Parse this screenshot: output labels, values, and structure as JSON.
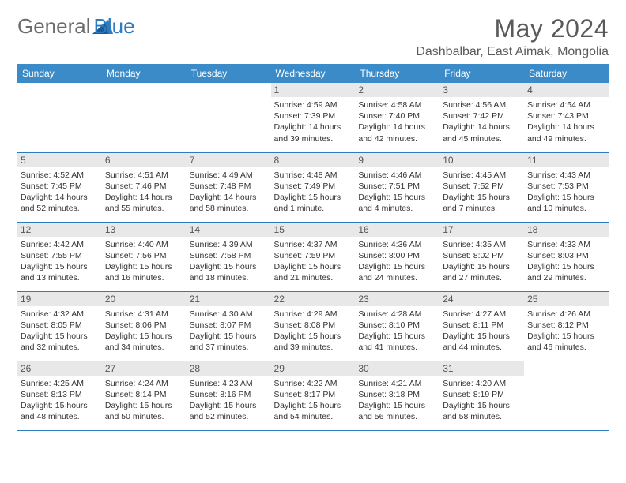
{
  "brand": {
    "part1": "General",
    "part2": "Blue"
  },
  "title": "May 2024",
  "location": "Dashbalbar, East Aimak, Mongolia",
  "colors": {
    "header_bg": "#3b8bc9",
    "header_text": "#ffffff",
    "border": "#2f7bbf",
    "daynum_bg": "#e8e8e8",
    "text": "#333333",
    "title_text": "#5a5a5a",
    "logo_gray": "#6b6b6b",
    "logo_blue": "#2f7bbf"
  },
  "day_headers": [
    "Sunday",
    "Monday",
    "Tuesday",
    "Wednesday",
    "Thursday",
    "Friday",
    "Saturday"
  ],
  "weeks": [
    [
      null,
      null,
      null,
      {
        "n": "1",
        "sunrise": "4:59 AM",
        "sunset": "7:39 PM",
        "daylight": "14 hours and 39 minutes."
      },
      {
        "n": "2",
        "sunrise": "4:58 AM",
        "sunset": "7:40 PM",
        "daylight": "14 hours and 42 minutes."
      },
      {
        "n": "3",
        "sunrise": "4:56 AM",
        "sunset": "7:42 PM",
        "daylight": "14 hours and 45 minutes."
      },
      {
        "n": "4",
        "sunrise": "4:54 AM",
        "sunset": "7:43 PM",
        "daylight": "14 hours and 49 minutes."
      }
    ],
    [
      {
        "n": "5",
        "sunrise": "4:52 AM",
        "sunset": "7:45 PM",
        "daylight": "14 hours and 52 minutes."
      },
      {
        "n": "6",
        "sunrise": "4:51 AM",
        "sunset": "7:46 PM",
        "daylight": "14 hours and 55 minutes."
      },
      {
        "n": "7",
        "sunrise": "4:49 AM",
        "sunset": "7:48 PM",
        "daylight": "14 hours and 58 minutes."
      },
      {
        "n": "8",
        "sunrise": "4:48 AM",
        "sunset": "7:49 PM",
        "daylight": "15 hours and 1 minute."
      },
      {
        "n": "9",
        "sunrise": "4:46 AM",
        "sunset": "7:51 PM",
        "daylight": "15 hours and 4 minutes."
      },
      {
        "n": "10",
        "sunrise": "4:45 AM",
        "sunset": "7:52 PM",
        "daylight": "15 hours and 7 minutes."
      },
      {
        "n": "11",
        "sunrise": "4:43 AM",
        "sunset": "7:53 PM",
        "daylight": "15 hours and 10 minutes."
      }
    ],
    [
      {
        "n": "12",
        "sunrise": "4:42 AM",
        "sunset": "7:55 PM",
        "daylight": "15 hours and 13 minutes."
      },
      {
        "n": "13",
        "sunrise": "4:40 AM",
        "sunset": "7:56 PM",
        "daylight": "15 hours and 16 minutes."
      },
      {
        "n": "14",
        "sunrise": "4:39 AM",
        "sunset": "7:58 PM",
        "daylight": "15 hours and 18 minutes."
      },
      {
        "n": "15",
        "sunrise": "4:37 AM",
        "sunset": "7:59 PM",
        "daylight": "15 hours and 21 minutes."
      },
      {
        "n": "16",
        "sunrise": "4:36 AM",
        "sunset": "8:00 PM",
        "daylight": "15 hours and 24 minutes."
      },
      {
        "n": "17",
        "sunrise": "4:35 AM",
        "sunset": "8:02 PM",
        "daylight": "15 hours and 27 minutes."
      },
      {
        "n": "18",
        "sunrise": "4:33 AM",
        "sunset": "8:03 PM",
        "daylight": "15 hours and 29 minutes."
      }
    ],
    [
      {
        "n": "19",
        "sunrise": "4:32 AM",
        "sunset": "8:05 PM",
        "daylight": "15 hours and 32 minutes."
      },
      {
        "n": "20",
        "sunrise": "4:31 AM",
        "sunset": "8:06 PM",
        "daylight": "15 hours and 34 minutes."
      },
      {
        "n": "21",
        "sunrise": "4:30 AM",
        "sunset": "8:07 PM",
        "daylight": "15 hours and 37 minutes."
      },
      {
        "n": "22",
        "sunrise": "4:29 AM",
        "sunset": "8:08 PM",
        "daylight": "15 hours and 39 minutes."
      },
      {
        "n": "23",
        "sunrise": "4:28 AM",
        "sunset": "8:10 PM",
        "daylight": "15 hours and 41 minutes."
      },
      {
        "n": "24",
        "sunrise": "4:27 AM",
        "sunset": "8:11 PM",
        "daylight": "15 hours and 44 minutes."
      },
      {
        "n": "25",
        "sunrise": "4:26 AM",
        "sunset": "8:12 PM",
        "daylight": "15 hours and 46 minutes."
      }
    ],
    [
      {
        "n": "26",
        "sunrise": "4:25 AM",
        "sunset": "8:13 PM",
        "daylight": "15 hours and 48 minutes."
      },
      {
        "n": "27",
        "sunrise": "4:24 AM",
        "sunset": "8:14 PM",
        "daylight": "15 hours and 50 minutes."
      },
      {
        "n": "28",
        "sunrise": "4:23 AM",
        "sunset": "8:16 PM",
        "daylight": "15 hours and 52 minutes."
      },
      {
        "n": "29",
        "sunrise": "4:22 AM",
        "sunset": "8:17 PM",
        "daylight": "15 hours and 54 minutes."
      },
      {
        "n": "30",
        "sunrise": "4:21 AM",
        "sunset": "8:18 PM",
        "daylight": "15 hours and 56 minutes."
      },
      {
        "n": "31",
        "sunrise": "4:20 AM",
        "sunset": "8:19 PM",
        "daylight": "15 hours and 58 minutes."
      },
      null
    ]
  ],
  "labels": {
    "sunrise": "Sunrise:",
    "sunset": "Sunset:",
    "daylight": "Daylight:"
  }
}
